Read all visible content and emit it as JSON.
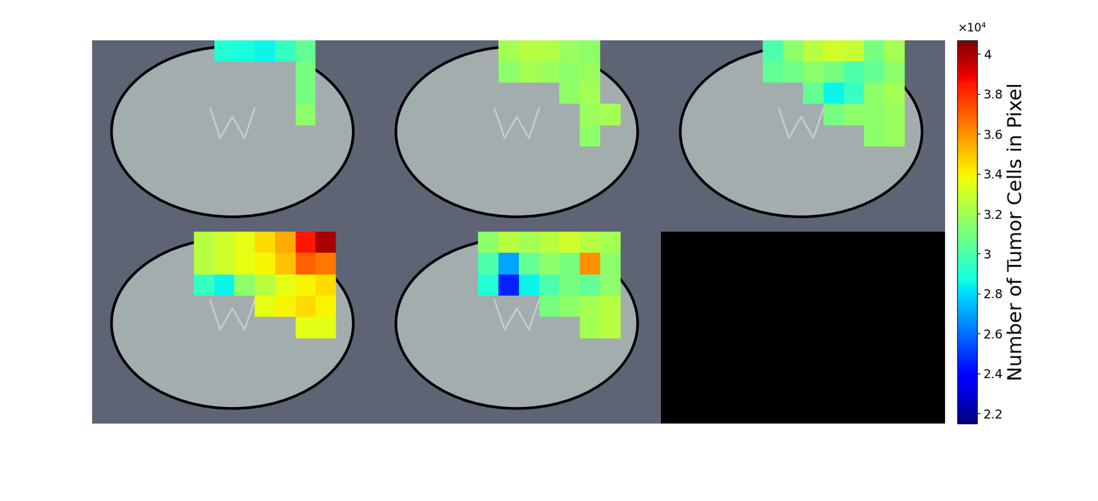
{
  "chart_data": {
    "type": "heatmap",
    "tick_labels": false,
    "colorbar": {
      "label": "Number of Tumor Cells in Pixel",
      "range": [
        21500,
        40700
      ],
      "multiplier": "×10⁴",
      "ticks": [
        {
          "value": 22000,
          "label": "2.2"
        },
        {
          "value": 24000,
          "label": "2.4"
        },
        {
          "value": 26000,
          "label": "2.6"
        },
        {
          "value": 28000,
          "label": "2.8"
        },
        {
          "value": 30000,
          "label": "3"
        },
        {
          "value": 32000,
          "label": "3.2"
        },
        {
          "value": 34000,
          "label": "3.4"
        },
        {
          "value": 36000,
          "label": "3.6"
        },
        {
          "value": 38000,
          "label": "3.8"
        },
        {
          "value": 40000,
          "label": "4"
        }
      ]
    },
    "slices": [
      {
        "cells": [
          [
            null,
            null,
            null,
            null,
            null,
            null,
            29000,
            28800,
            28500,
            29500,
            30500,
            null,
            null,
            null
          ],
          [
            null,
            null,
            null,
            null,
            null,
            null,
            null,
            null,
            null,
            null,
            31000,
            null,
            null,
            null
          ],
          [
            null,
            null,
            null,
            null,
            null,
            null,
            null,
            null,
            null,
            null,
            31000,
            null,
            null,
            null
          ],
          [
            null,
            null,
            null,
            null,
            null,
            null,
            null,
            null,
            null,
            null,
            31500,
            null,
            null,
            null
          ],
          [
            null,
            null,
            null,
            null,
            null,
            null,
            null,
            null,
            null,
            null,
            null,
            null,
            null,
            null
          ]
        ]
      },
      {
        "cells": [
          [
            null,
            null,
            null,
            null,
            null,
            null,
            32000,
            32500,
            32300,
            31800,
            31500,
            null,
            null,
            null
          ],
          [
            null,
            null,
            null,
            null,
            null,
            null,
            31500,
            32000,
            31800,
            31500,
            31800,
            null,
            null,
            null
          ],
          [
            null,
            null,
            null,
            null,
            null,
            null,
            null,
            null,
            null,
            31600,
            32000,
            null,
            null,
            null
          ],
          [
            null,
            null,
            null,
            null,
            null,
            null,
            null,
            null,
            null,
            null,
            31800,
            32000,
            null,
            null
          ],
          [
            null,
            null,
            null,
            null,
            null,
            null,
            null,
            null,
            null,
            null,
            31500,
            null,
            null,
            null
          ]
        ]
      },
      {
        "cells": [
          [
            null,
            null,
            null,
            null,
            null,
            30000,
            31500,
            32500,
            33000,
            32800,
            31000,
            32000,
            null,
            null
          ],
          [
            null,
            null,
            null,
            null,
            null,
            30500,
            30800,
            31500,
            31000,
            30000,
            30500,
            31500,
            null,
            null
          ],
          [
            null,
            null,
            null,
            null,
            null,
            null,
            null,
            30500,
            28500,
            29500,
            31500,
            32000,
            null,
            null
          ],
          [
            null,
            null,
            null,
            null,
            null,
            null,
            null,
            null,
            31000,
            31500,
            31500,
            31800,
            null,
            null
          ],
          [
            null,
            null,
            null,
            null,
            null,
            null,
            null,
            null,
            null,
            null,
            31500,
            31800,
            null,
            null
          ]
        ]
      },
      {
        "cells": [
          [
            null,
            null,
            null,
            null,
            null,
            32500,
            33000,
            33500,
            34500,
            35500,
            38500,
            40000,
            null,
            null
          ],
          [
            null,
            null,
            null,
            null,
            null,
            32500,
            33000,
            33500,
            34000,
            35000,
            37000,
            36500,
            null,
            null
          ],
          [
            null,
            null,
            null,
            null,
            null,
            29500,
            28500,
            31500,
            32500,
            33500,
            34000,
            34500,
            null,
            null
          ],
          [
            null,
            null,
            null,
            null,
            null,
            null,
            null,
            null,
            33500,
            34000,
            34500,
            34000,
            null,
            null
          ],
          [
            null,
            null,
            null,
            null,
            null,
            null,
            null,
            null,
            null,
            null,
            33500,
            33500,
            null,
            null
          ]
        ]
      },
      {
        "cells": [
          [
            null,
            null,
            null,
            null,
            null,
            31500,
            32500,
            32000,
            32500,
            33000,
            32500,
            32000,
            null,
            null
          ],
          [
            null,
            null,
            null,
            null,
            null,
            30000,
            27000,
            30500,
            31500,
            31000,
            36000,
            31500,
            null,
            null
          ],
          [
            null,
            null,
            null,
            null,
            null,
            29000,
            24500,
            28500,
            30000,
            31000,
            30500,
            31500,
            null,
            null
          ],
          [
            null,
            null,
            null,
            null,
            null,
            null,
            null,
            null,
            31000,
            31500,
            32000,
            32500,
            null,
            null
          ],
          [
            null,
            null,
            null,
            null,
            null,
            null,
            null,
            null,
            null,
            null,
            32000,
            32500,
            null,
            null
          ]
        ]
      }
    ]
  }
}
